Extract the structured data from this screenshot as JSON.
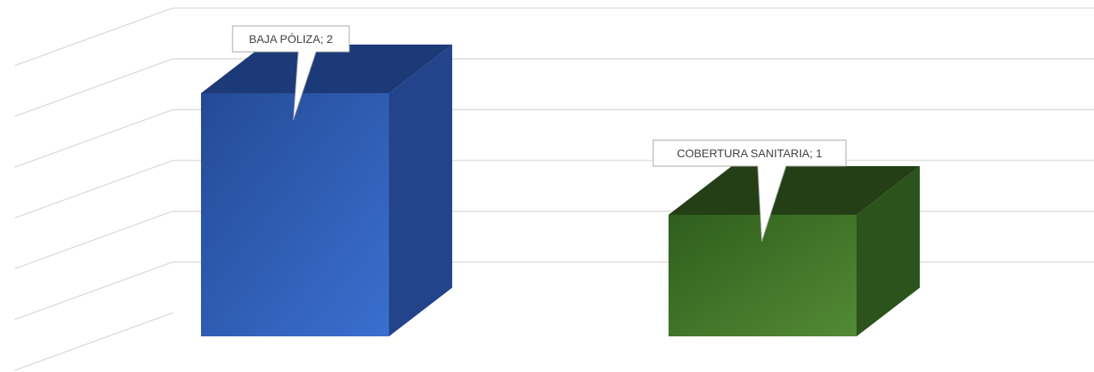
{
  "chart_data": {
    "type": "bar",
    "style": "3d-column",
    "categories": [
      "BAJA PÓLIZA",
      "COBERTURA SANITARIA"
    ],
    "values": [
      2,
      1
    ],
    "data_labels": [
      "BAJA PÓLIZA; 2",
      "COBERTURA SANITARIA; 1"
    ],
    "colors": [
      "#2f5bb0",
      "#3f7a28"
    ],
    "ylim": [
      0,
      2.4
    ],
    "gridlines": true,
    "gridline_color": "#d9d9d9",
    "legend": "none",
    "title": "",
    "xlabel": "",
    "ylabel": ""
  }
}
